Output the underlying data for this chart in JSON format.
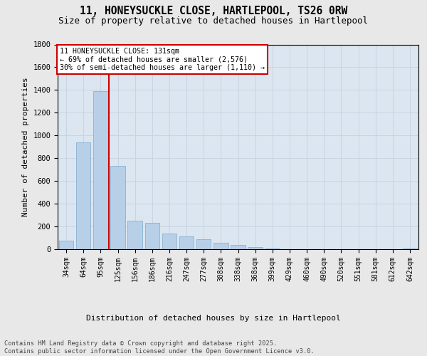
{
  "title": "11, HONEYSUCKLE CLOSE, HARTLEPOOL, TS26 0RW",
  "subtitle": "Size of property relative to detached houses in Hartlepool",
  "xlabel": "Distribution of detached houses by size in Hartlepool",
  "ylabel": "Number of detached properties",
  "categories": [
    "34sqm",
    "64sqm",
    "95sqm",
    "125sqm",
    "156sqm",
    "186sqm",
    "216sqm",
    "247sqm",
    "277sqm",
    "308sqm",
    "338sqm",
    "368sqm",
    "399sqm",
    "429sqm",
    "460sqm",
    "490sqm",
    "520sqm",
    "551sqm",
    "581sqm",
    "612sqm",
    "642sqm"
  ],
  "values": [
    75,
    940,
    1390,
    730,
    250,
    230,
    135,
    110,
    85,
    55,
    35,
    20,
    5,
    0,
    0,
    0,
    0,
    0,
    0,
    0,
    5
  ],
  "bar_color": "#b8cfe8",
  "bar_edge_color": "#7aaacf",
  "grid_color": "#c8d4e2",
  "plot_bg_color": "#dce6f0",
  "fig_bg_color": "#e8e8e8",
  "vline_color": "#cc0000",
  "vline_x": 2.5,
  "annotation_text": "11 HONEYSUCKLE CLOSE: 131sqm\n← 69% of detached houses are smaller (2,576)\n30% of semi-detached houses are larger (1,110) →",
  "annotation_box_edgecolor": "#cc0000",
  "ylim": [
    0,
    1800
  ],
  "yticks": [
    0,
    200,
    400,
    600,
    800,
    1000,
    1200,
    1400,
    1600,
    1800
  ],
  "footer_line1": "Contains HM Land Registry data © Crown copyright and database right 2025.",
  "footer_line2": "Contains public sector information licensed under the Open Government Licence v3.0."
}
